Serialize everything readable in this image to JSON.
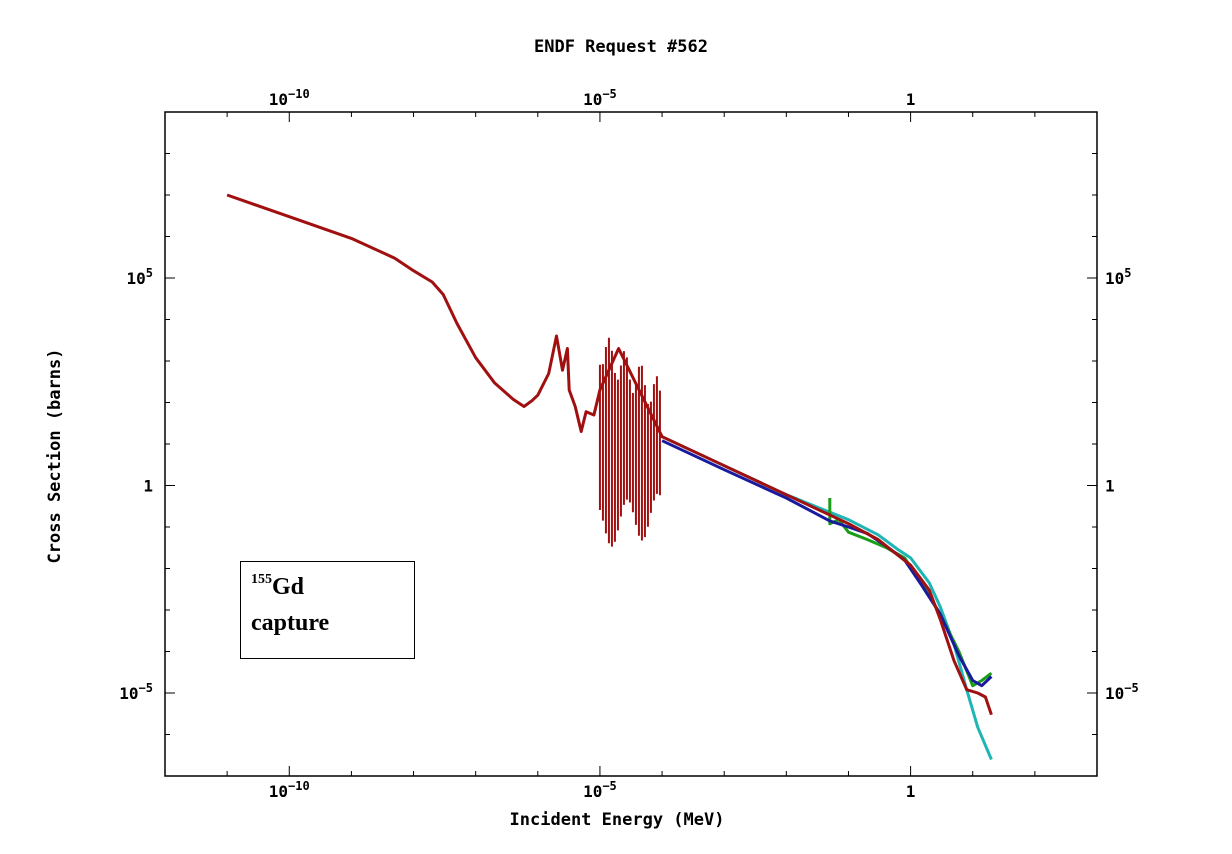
{
  "chart_data": {
    "type": "line",
    "title": "ENDF Request #562",
    "xlabel": "Incident Energy (MeV)",
    "ylabel": "Cross Section (barns)",
    "xscale": "log",
    "yscale": "log",
    "xlim": [
      1e-12,
      1000
    ],
    "ylim": [
      1e-07,
      1000000000.0
    ],
    "x_ticks": [
      {
        "value": 1e-10,
        "base": "10",
        "exp": "−10"
      },
      {
        "value": 1e-05,
        "base": "10",
        "exp": "−5"
      },
      {
        "value": 1,
        "base": "1",
        "exp": ""
      }
    ],
    "y_ticks": [
      {
        "value": 100000,
        "base": "10",
        "exp": "5"
      },
      {
        "value": 1,
        "base": "1",
        "exp": ""
      },
      {
        "value": 1e-05,
        "base": "10",
        "exp": "−5"
      }
    ],
    "grid": false,
    "legend_position": "bottom-left",
    "annotation": {
      "mass_number": "155",
      "element": "Gd",
      "reaction": "capture"
    },
    "series": [
      {
        "color": "#1fb5b5",
        "points": [
          [
            0.0001,
            15
          ],
          [
            0.001,
            3
          ],
          [
            0.01,
            0.6
          ],
          [
            0.1,
            0.15
          ],
          [
            0.3,
            0.065
          ],
          [
            0.6,
            0.03
          ],
          [
            1.0,
            0.018
          ],
          [
            2.0,
            0.0045
          ],
          [
            3.0,
            0.0012
          ],
          [
            5.0,
            0.00015
          ],
          [
            8.0,
            1.2e-05
          ],
          [
            12.0,
            1.5e-06
          ],
          [
            20.0,
            2.5e-07
          ]
        ]
      },
      {
        "color": "#1a9e1a",
        "points": [
          [
            0.05,
            0.5
          ],
          [
            0.05,
            0.12
          ],
          [
            0.07,
            0.15
          ],
          [
            0.1,
            0.075
          ],
          [
            0.2,
            0.05
          ],
          [
            0.4,
            0.032
          ],
          [
            0.8,
            0.018
          ],
          [
            1.5,
            0.0045
          ],
          [
            3.0,
            0.0008
          ],
          [
            6.0,
            0.0001
          ],
          [
            10.0,
            1.5e-05
          ],
          [
            14.0,
            2e-05
          ],
          [
            20.0,
            3e-05
          ]
        ]
      },
      {
        "color": "#1a1a9e",
        "points": [
          [
            0.0001,
            12
          ],
          [
            0.001,
            2.4
          ],
          [
            0.01,
            0.5
          ],
          [
            0.05,
            0.14
          ],
          [
            0.1,
            0.1
          ],
          [
            0.2,
            0.07
          ],
          [
            0.4,
            0.035
          ],
          [
            0.8,
            0.016
          ],
          [
            1.5,
            0.004
          ],
          [
            3.0,
            0.0008
          ],
          [
            6.0,
            8e-05
          ],
          [
            10.0,
            2e-05
          ],
          [
            14.0,
            1.5e-05
          ],
          [
            20.0,
            2.5e-05
          ]
        ]
      },
      {
        "color": "#a01010",
        "points": [
          [
            1e-11,
            10000000.0
          ],
          [
            1e-10,
            3000000.0
          ],
          [
            1e-09,
            900000.0
          ],
          [
            5e-09,
            300000.0
          ],
          [
            1e-08,
            150000.0
          ],
          [
            2e-08,
            80000.0
          ],
          [
            3e-08,
            40000.0
          ],
          [
            5e-08,
            8000.0
          ],
          [
            1e-07,
            1200.0
          ],
          [
            2e-07,
            300
          ],
          [
            4e-07,
            120
          ],
          [
            6e-07,
            80
          ],
          [
            8e-07,
            110
          ],
          [
            1e-06,
            150
          ],
          [
            1.5e-06,
            500
          ],
          [
            2e-06,
            4000
          ],
          [
            2.5e-06,
            600
          ],
          [
            3e-06,
            2000
          ],
          [
            3.2e-06,
            200
          ],
          [
            4e-06,
            80
          ],
          [
            5e-06,
            20
          ],
          [
            6e-06,
            60
          ],
          [
            8e-06,
            50
          ],
          [
            1e-05,
            200
          ],
          [
            2e-05,
            2000
          ],
          [
            0.0001,
            15
          ],
          [
            0.001,
            3
          ],
          [
            0.01,
            0.6
          ],
          [
            0.1,
            0.12
          ],
          [
            0.3,
            0.05
          ],
          [
            0.6,
            0.022
          ],
          [
            1.0,
            0.012
          ],
          [
            2.0,
            0.003
          ],
          [
            3.0,
            0.0006
          ],
          [
            5.0,
            6e-05
          ],
          [
            8.0,
            1.2e-05
          ],
          [
            12.0,
            1e-05
          ],
          [
            16.0,
            8e-06
          ],
          [
            20.0,
            3e-06
          ]
        ]
      }
    ]
  }
}
